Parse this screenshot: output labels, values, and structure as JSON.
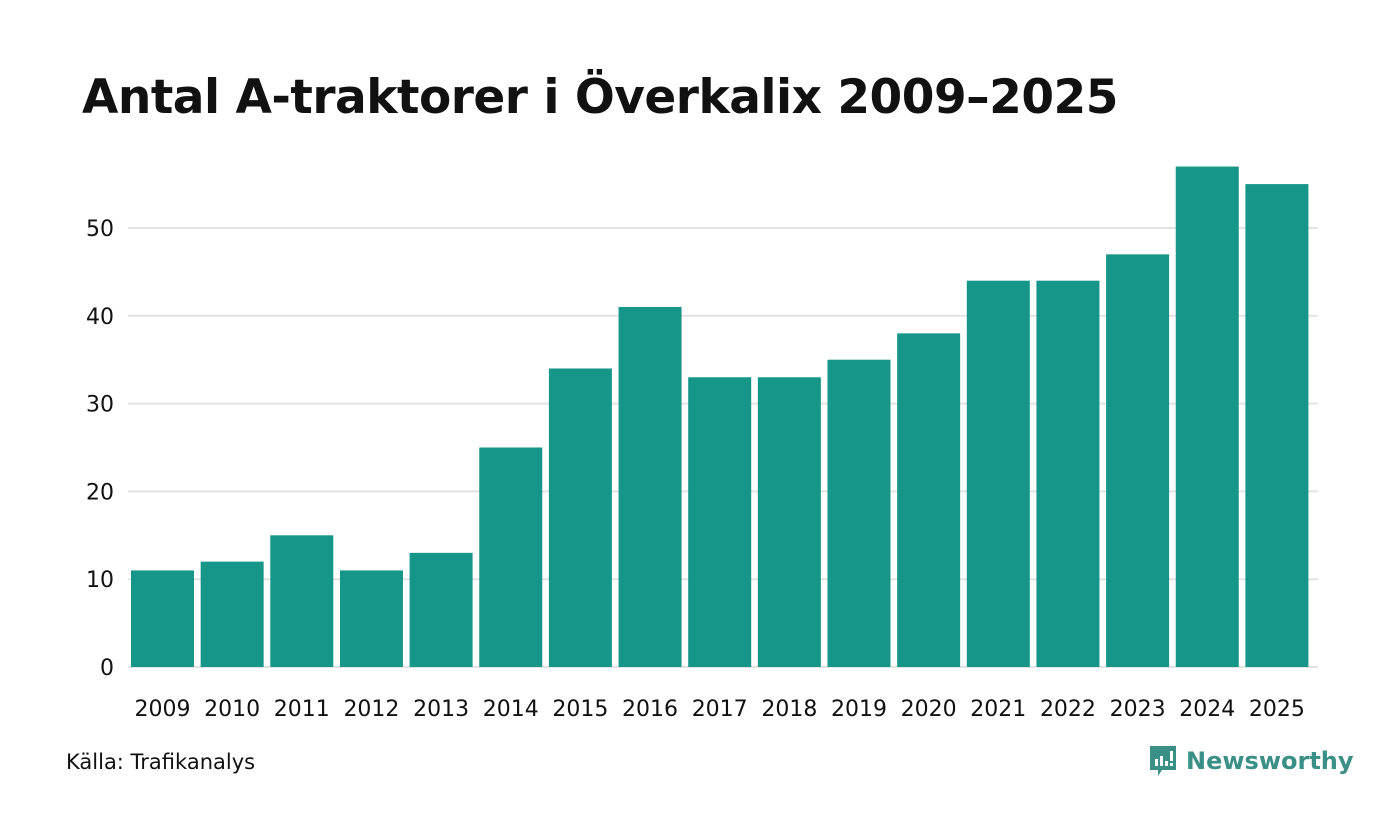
{
  "title": "Antal A-traktorer i Överkalix 2009–2025",
  "source": "Källa: Trafikanalys",
  "brand": "Newsworthy",
  "colors": {
    "bar": "#159689",
    "grid": "#e3e3e3",
    "brand": "#3a8f86"
  },
  "chart_data": {
    "type": "bar",
    "title": "Antal A-traktorer i Överkalix 2009–2025",
    "xlabel": "",
    "ylabel": "",
    "categories": [
      "2009",
      "2010",
      "2011",
      "2012",
      "2013",
      "2014",
      "2015",
      "2016",
      "2017",
      "2018",
      "2019",
      "2020",
      "2021",
      "2022",
      "2023",
      "2024",
      "2025"
    ],
    "values": [
      11,
      12,
      15,
      11,
      13,
      25,
      34,
      41,
      33,
      33,
      35,
      38,
      44,
      44,
      47,
      57,
      55
    ],
    "ylim": [
      0,
      60
    ],
    "yticks": [
      0,
      10,
      20,
      30,
      40,
      50
    ],
    "grid": true
  }
}
